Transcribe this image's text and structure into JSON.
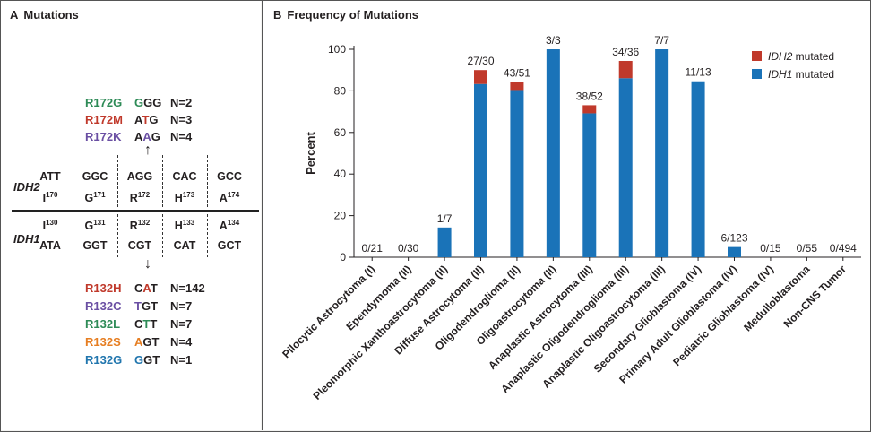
{
  "panel_a": {
    "letter": "A",
    "title": "Mutations",
    "idh2_label": "IDH2",
    "idh1_label": "IDH1",
    "idh2_codons": [
      "ATT",
      "GGC",
      "AGG",
      "CAC",
      "GCC"
    ],
    "idh2_residues": [
      {
        "aa": "I",
        "num": "170"
      },
      {
        "aa": "G",
        "num": "171"
      },
      {
        "aa": "R",
        "num": "172"
      },
      {
        "aa": "H",
        "num": "173"
      },
      {
        "aa": "A",
        "num": "174"
      }
    ],
    "idh1_residues": [
      {
        "aa": "I",
        "num": "130"
      },
      {
        "aa": "G",
        "num": "131"
      },
      {
        "aa": "R",
        "num": "132"
      },
      {
        "aa": "H",
        "num": "133"
      },
      {
        "aa": "A",
        "num": "134"
      }
    ],
    "idh1_codons": [
      "ATA",
      "GGT",
      "CGT",
      "CAT",
      "GCT"
    ],
    "idh2_mutations": [
      {
        "name": "R172G",
        "pre": "",
        "alt": "G",
        "post": "GG",
        "count": "N=2",
        "color": "#2e8b57"
      },
      {
        "name": "R172M",
        "pre": "A",
        "alt": "T",
        "post": "G",
        "count": "N=3",
        "color": "#c0392b"
      },
      {
        "name": "R172K",
        "pre": "A",
        "alt": "A",
        "post": "G",
        "count": "N=4",
        "color": "#6a4fa3"
      }
    ],
    "idh1_mutations": [
      {
        "name": "R132H",
        "pre": "C",
        "alt": "A",
        "post": "T",
        "count": "N=142",
        "color": "#c0392b"
      },
      {
        "name": "R132C",
        "pre": "",
        "alt": "T",
        "post": "GT",
        "count": "N=7",
        "color": "#6a4fa3"
      },
      {
        "name": "R132L",
        "pre": "C",
        "alt": "T",
        "post": "T",
        "count": "N=7",
        "color": "#2e8b57"
      },
      {
        "name": "R132S",
        "pre": "",
        "alt": "A",
        "post": "GT",
        "count": "N=4",
        "color": "#e67e22"
      },
      {
        "name": "R132G",
        "pre": "",
        "alt": "G",
        "post": "GT",
        "count": "N=1",
        "color": "#2176ae"
      }
    ]
  },
  "panel_b": {
    "letter": "B",
    "title": "Frequency of Mutations"
  },
  "chart_data": {
    "type": "bar",
    "stacked": true,
    "title": "Frequency of Mutations",
    "ylabel": "Percent",
    "ylim": [
      0,
      100
    ],
    "yticks": [
      0,
      20,
      40,
      60,
      80,
      100
    ],
    "grid": false,
    "legend_position": "top-right",
    "categories": [
      "Pilocytic Astrocytoma (I)",
      "Ependymoma (II)",
      "Pleomorphic Xanthoastrocytoma (II)",
      "Diffuse Astrocytoma (II)",
      "Oligodendroglioma (II)",
      "Oligoastrocytoma (II)",
      "Anaplastic Astrocytoma (III)",
      "Anaplastic Oligodendroglioma (III)",
      "Anaplastic Oligoastrocytoma (III)",
      "Secondary Glioblastoma (IV)",
      "Primary Adult Glioblastoma (IV)",
      "Pediatric Glioblastoma (IV)",
      "Medulloblastoma",
      "Non-CNS Tumor"
    ],
    "bar_labels": [
      "0/21",
      "0/30",
      "1/7",
      "27/30",
      "43/51",
      "3/3",
      "38/52",
      "34/36",
      "7/7",
      "11/13",
      "6/123",
      "0/15",
      "0/55",
      "0/494"
    ],
    "series": [
      {
        "name": "IDH1 mutated",
        "color": "#1a73b8",
        "values": [
          0,
          0,
          14.3,
          83.3,
          80.4,
          100,
          69.2,
          86.1,
          100,
          84.6,
          4.9,
          0,
          0,
          0
        ]
      },
      {
        "name": "IDH2 mutated",
        "color": "#c0392b",
        "values": [
          0,
          0,
          0,
          6.7,
          3.9,
          0,
          3.9,
          8.3,
          0,
          0,
          0,
          0,
          0,
          0
        ]
      }
    ],
    "legend": [
      {
        "gene": "IDH2",
        "suffix": " mutated",
        "color": "#c0392b"
      },
      {
        "gene": "IDH1",
        "suffix": " mutated",
        "color": "#1a73b8"
      }
    ]
  }
}
